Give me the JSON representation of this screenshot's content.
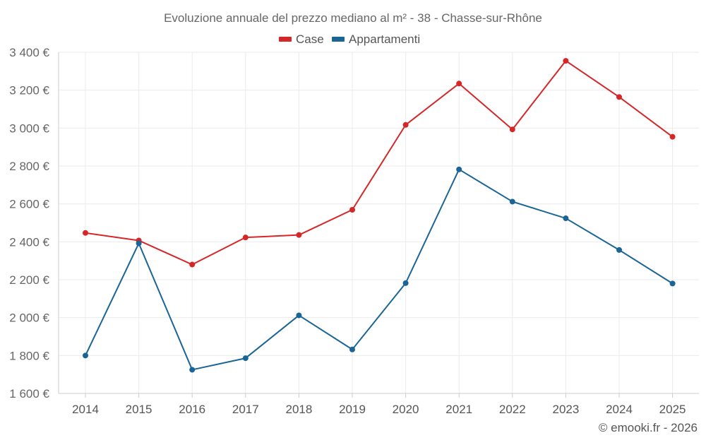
{
  "chart_data": {
    "type": "line",
    "title": "Evoluzione annuale del prezzo mediano al m² - 38 - Chasse-sur-Rhône",
    "categories": [
      "2014",
      "2015",
      "2016",
      "2017",
      "2018",
      "2019",
      "2020",
      "2021",
      "2022",
      "2023",
      "2024",
      "2025"
    ],
    "series": [
      {
        "name": "Case",
        "color": "#d62728",
        "values": [
          2447,
          2407,
          2280,
          2423,
          2436,
          2569,
          3017,
          3235,
          2993,
          3355,
          3164,
          2954
        ]
      },
      {
        "name": "Appartamenti",
        "color": "#1a6496",
        "values": [
          1800,
          2392,
          1725,
          1786,
          2012,
          1832,
          2182,
          2782,
          2612,
          2524,
          2357,
          2180
        ]
      }
    ],
    "ylim": [
      1600,
      3400
    ],
    "yticks": [
      1600,
      1800,
      2000,
      2200,
      2400,
      2600,
      2800,
      3000,
      3200,
      3400
    ],
    "ytick_labels": [
      "1 600 €",
      "1 800 €",
      "2 000 €",
      "2 200 €",
      "2 400 €",
      "2 600 €",
      "2 800 €",
      "3 000 €",
      "3 200 €",
      "3 400 €"
    ],
    "xlabel": "",
    "ylabel": "",
    "grid": true,
    "legend_position": "top-center"
  },
  "credit": "© emooki.fr - 2026"
}
